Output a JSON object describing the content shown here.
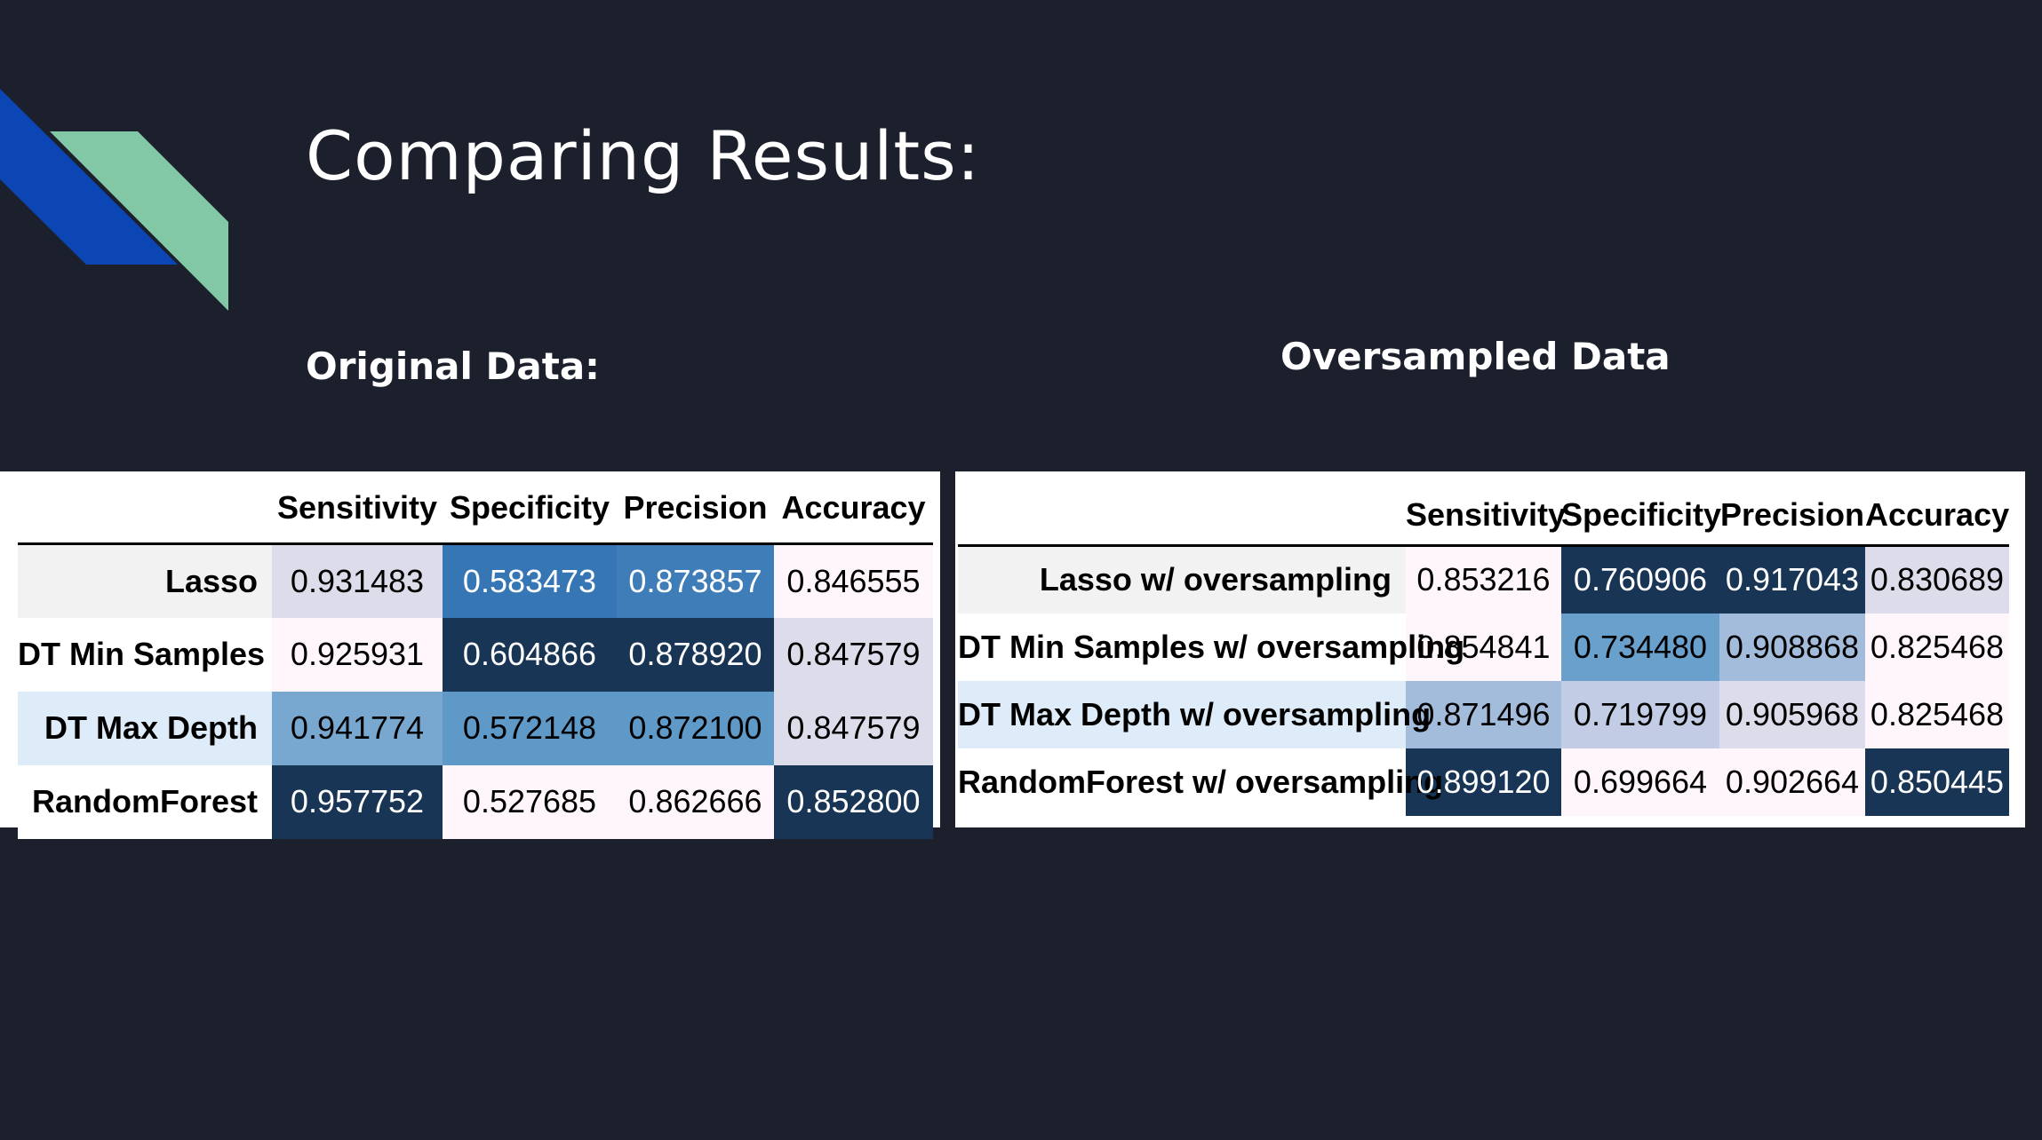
{
  "title": "Comparing Results:",
  "colors": {
    "background": "#1c202c",
    "accent_blue": "#0b46b4",
    "accent_green": "#82c8a6"
  },
  "sections": {
    "original_label": "Original Data:",
    "oversampled_label": "Oversampled Data"
  },
  "original_table": {
    "columns": [
      "Sensitivity",
      "Specificity",
      "Precision",
      "Accuracy"
    ],
    "rows": [
      {
        "label": "Lasso",
        "label_bg": "#f2f2f2",
        "cells": [
          {
            "value": "0.931483",
            "bg": "#dddcea",
            "fg": "#000000"
          },
          {
            "value": "0.583473",
            "bg": "#3776b4",
            "fg": "#ffffff"
          },
          {
            "value": "0.873857",
            "bg": "#3e7db8",
            "fg": "#ffffff"
          },
          {
            "value": "0.846555",
            "bg": "#fef6fb",
            "fg": "#000000"
          }
        ]
      },
      {
        "label": "DT Min Samples",
        "label_bg": "#ffffff",
        "cells": [
          {
            "value": "0.925931",
            "bg": "#fef6fb",
            "fg": "#000000"
          },
          {
            "value": "0.604866",
            "bg": "#183556",
            "fg": "#ffffff"
          },
          {
            "value": "0.878920",
            "bg": "#183556",
            "fg": "#ffffff"
          },
          {
            "value": "0.847579",
            "bg": "#dddcea",
            "fg": "#000000"
          }
        ]
      },
      {
        "label": "DT Max Depth",
        "label_bg": "#deebf8",
        "cells": [
          {
            "value": "0.941774",
            "bg": "#78a8cf",
            "fg": "#000000"
          },
          {
            "value": "0.572148",
            "bg": "#5f99c7",
            "fg": "#000000"
          },
          {
            "value": "0.872100",
            "bg": "#5f99c7",
            "fg": "#000000"
          },
          {
            "value": "0.847579",
            "bg": "#dddcea",
            "fg": "#000000"
          }
        ]
      },
      {
        "label": "RandomForest",
        "label_bg": "#ffffff",
        "cells": [
          {
            "value": "0.957752",
            "bg": "#183556",
            "fg": "#ffffff"
          },
          {
            "value": "0.527685",
            "bg": "#fef6fb",
            "fg": "#000000"
          },
          {
            "value": "0.862666",
            "bg": "#fef6fb",
            "fg": "#000000"
          },
          {
            "value": "0.852800",
            "bg": "#183556",
            "fg": "#ffffff"
          }
        ]
      }
    ]
  },
  "oversampled_table": {
    "columns": [
      "Sensitivity",
      "Specificity",
      "Precision",
      "Accuracy"
    ],
    "rows": [
      {
        "label": "Lasso w/ oversampling",
        "label_bg": "#f2f2f2",
        "cells": [
          {
            "value": "0.853216",
            "bg": "#fef6fb",
            "fg": "#000000"
          },
          {
            "value": "0.760906",
            "bg": "#183556",
            "fg": "#ffffff"
          },
          {
            "value": "0.917043",
            "bg": "#183556",
            "fg": "#ffffff"
          },
          {
            "value": "0.830689",
            "bg": "#dddcea",
            "fg": "#000000"
          }
        ]
      },
      {
        "label": "DT Min Samples w/ oversampling",
        "label_bg": "#ffffff",
        "cells": [
          {
            "value": "0.854841",
            "bg": "#fef6fb",
            "fg": "#000000"
          },
          {
            "value": "0.734480",
            "bg": "#6aa0cc",
            "fg": "#000000"
          },
          {
            "value": "0.908868",
            "bg": "#a4bcdc",
            "fg": "#000000"
          },
          {
            "value": "0.825468",
            "bg": "#fef6fb",
            "fg": "#000000"
          }
        ]
      },
      {
        "label": "DT Max Depth w/ oversampling",
        "label_bg": "#deebf8",
        "cells": [
          {
            "value": "0.871496",
            "bg": "#a4bcdc",
            "fg": "#000000"
          },
          {
            "value": "0.719799",
            "bg": "#c2cde5",
            "fg": "#000000"
          },
          {
            "value": "0.905968",
            "bg": "#dddcea",
            "fg": "#000000"
          },
          {
            "value": "0.825468",
            "bg": "#fef6fb",
            "fg": "#000000"
          }
        ]
      },
      {
        "label": "RandomForest w/ oversampling",
        "label_bg": "#ffffff",
        "cells": [
          {
            "value": "0.899120",
            "bg": "#183556",
            "fg": "#ffffff"
          },
          {
            "value": "0.699664",
            "bg": "#fef6fb",
            "fg": "#000000"
          },
          {
            "value": "0.902664",
            "bg": "#fef6fb",
            "fg": "#000000"
          },
          {
            "value": "0.850445",
            "bg": "#183556",
            "fg": "#ffffff"
          }
        ]
      }
    ]
  }
}
